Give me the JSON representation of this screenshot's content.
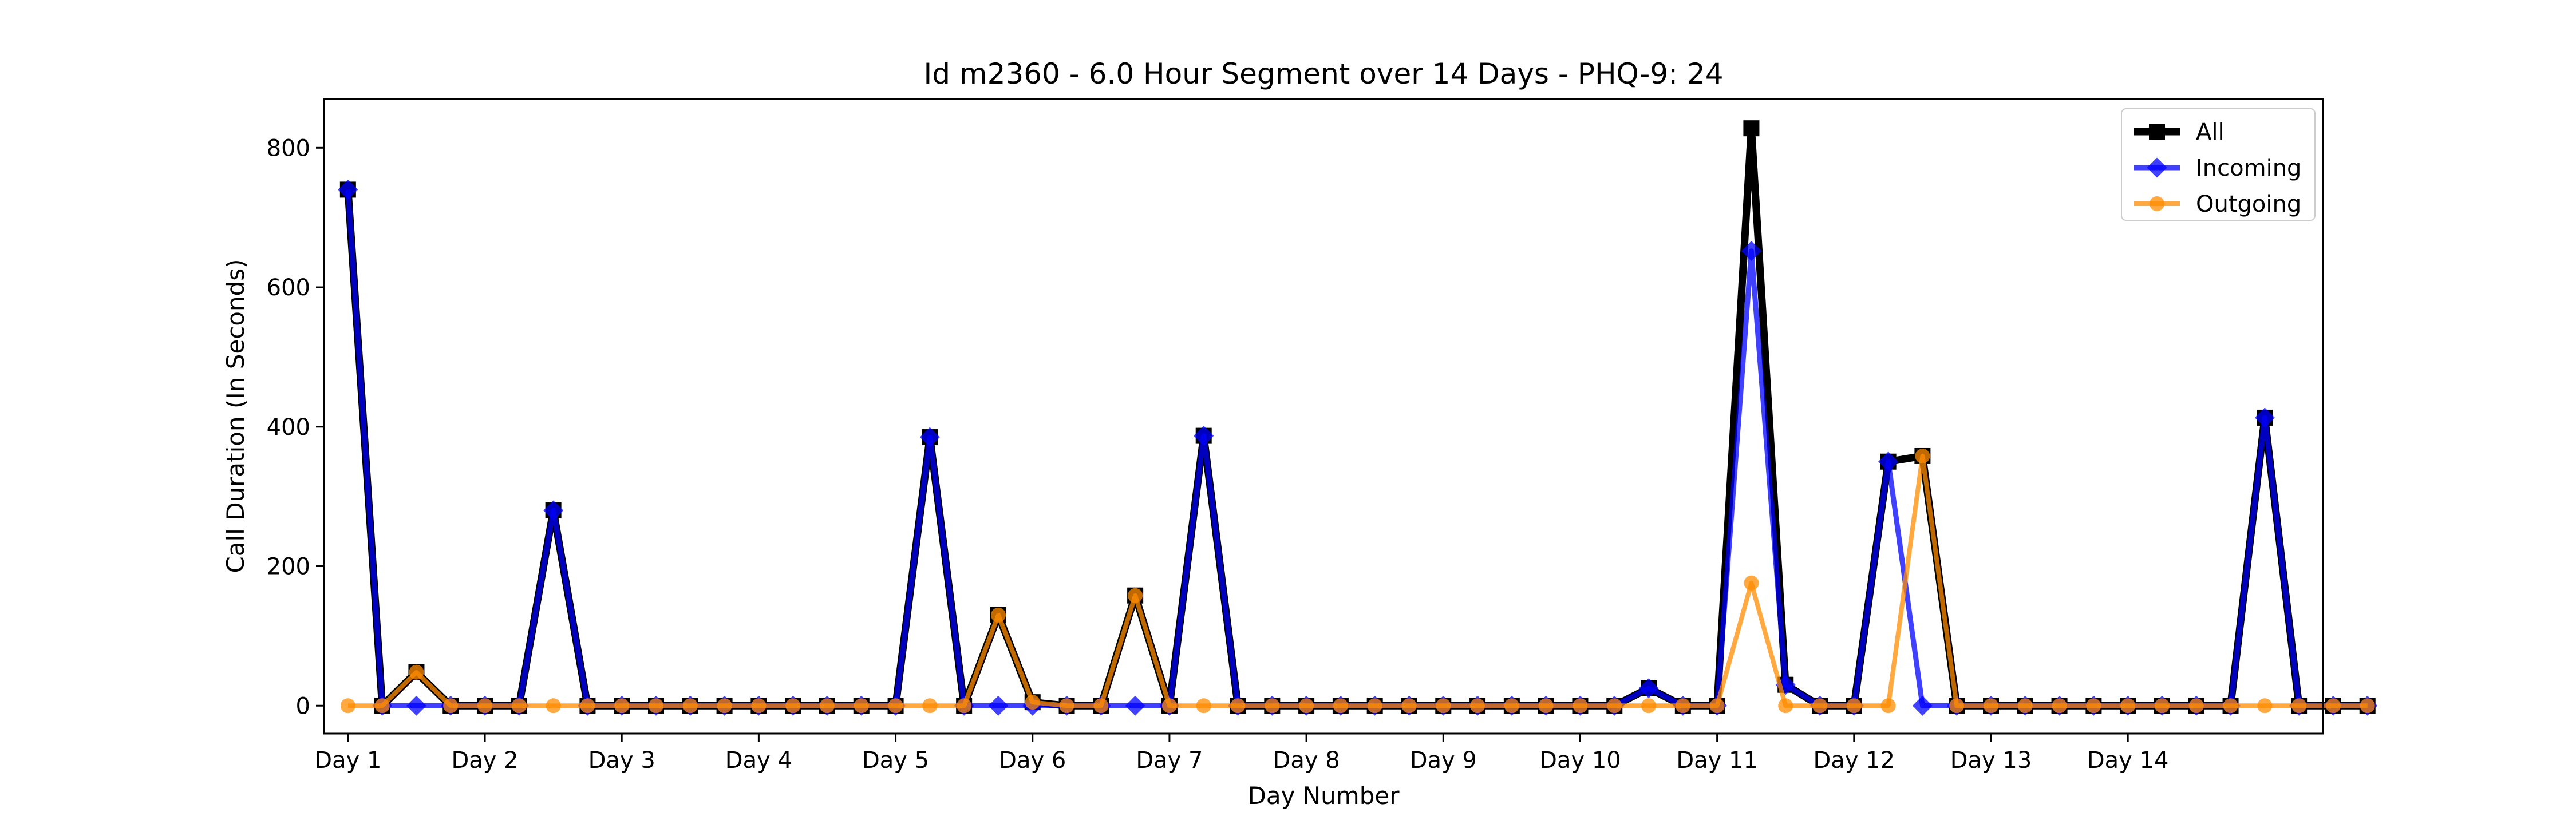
{
  "chart_data": {
    "type": "line",
    "title": "Id m2360 - 6.0 Hour Segment over 14 Days - PHQ-9: 24",
    "xlabel": "Day Number",
    "ylabel": "Call Duration (In Seconds)",
    "x_ticks": [
      "Day 1",
      "Day 2",
      "Day 3",
      "Day 4",
      "Day 5",
      "Day 6",
      "Day 7",
      "Day 8",
      "Day 9",
      "Day 10",
      "Day 11",
      "Day 12",
      "Day 13",
      "Day 14"
    ],
    "xlim": [
      -0.7,
      57.7
    ],
    "ylim": [
      -40,
      870
    ],
    "y_ticks": [
      0,
      200,
      400,
      600,
      800
    ],
    "legend_position": "top-right",
    "series": [
      {
        "name": "All",
        "color": "#000000",
        "marker": "square",
        "values": [
          740,
          0,
          48,
          0,
          0,
          0,
          280,
          0,
          0,
          0,
          0,
          0,
          0,
          0,
          0,
          0,
          0,
          385,
          0,
          130,
          5,
          0,
          0,
          158,
          0,
          387,
          0,
          0,
          0,
          0,
          0,
          0,
          0,
          0,
          0,
          0,
          0,
          0,
          25,
          0,
          0,
          828,
          30,
          0,
          0,
          350,
          358,
          0,
          0,
          0,
          0,
          0,
          0,
          0,
          0,
          0,
          413,
          0,
          0,
          0
        ]
      },
      {
        "name": "Incoming",
        "color": "#0000ff",
        "marker": "diamond",
        "values": [
          740,
          0,
          0,
          0,
          0,
          0,
          280,
          0,
          0,
          0,
          0,
          0,
          0,
          0,
          0,
          0,
          0,
          385,
          0,
          0,
          0,
          0,
          0,
          0,
          0,
          387,
          0,
          0,
          0,
          0,
          0,
          0,
          0,
          0,
          0,
          0,
          0,
          0,
          25,
          0,
          0,
          652,
          30,
          0,
          0,
          350,
          0,
          0,
          0,
          0,
          0,
          0,
          0,
          0,
          0,
          0,
          413,
          0,
          0,
          0
        ]
      },
      {
        "name": "Outgoing",
        "color": "#ff8c00",
        "marker": "circle",
        "values": [
          0,
          0,
          48,
          0,
          0,
          0,
          0,
          0,
          0,
          0,
          0,
          0,
          0,
          0,
          0,
          0,
          0,
          0,
          0,
          130,
          5,
          0,
          0,
          158,
          0,
          0,
          0,
          0,
          0,
          0,
          0,
          0,
          0,
          0,
          0,
          0,
          0,
          0,
          0,
          0,
          0,
          176,
          0,
          0,
          0,
          0,
          358,
          0,
          0,
          0,
          0,
          0,
          0,
          0,
          0,
          0,
          0,
          0,
          0,
          0
        ]
      }
    ]
  }
}
